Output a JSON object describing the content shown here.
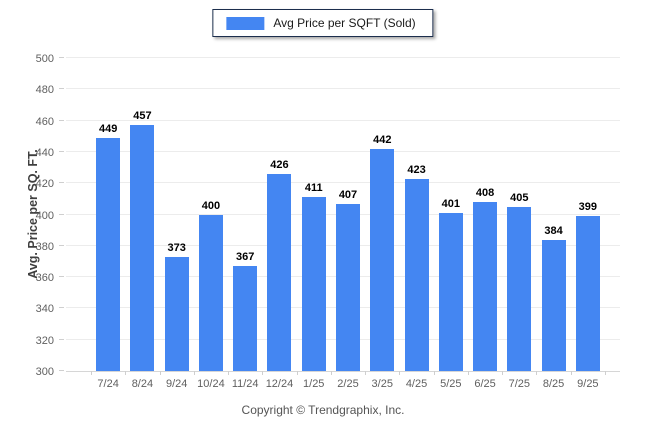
{
  "chart_data": {
    "type": "bar",
    "title": "",
    "legend": "Avg Price per SQFT (Sold)",
    "legend_position": "top-center",
    "xlabel": "",
    "ylabel": "Avg. Price per SQ. FT.",
    "categories": [
      "7/24",
      "8/24",
      "9/24",
      "10/24",
      "11/24",
      "12/24",
      "1/25",
      "2/25",
      "3/25",
      "4/25",
      "5/25",
      "6/25",
      "7/25",
      "8/25",
      "9/25"
    ],
    "values": [
      449,
      457,
      373,
      400,
      367,
      426,
      411,
      407,
      442,
      423,
      401,
      408,
      405,
      384,
      399
    ],
    "ylim": [
      300,
      500
    ],
    "yticks": [
      300,
      320,
      340,
      360,
      380,
      400,
      420,
      440,
      460,
      480,
      500
    ],
    "grid": "horizontal",
    "bar_color": "#4486F2"
  },
  "footer": {
    "copyright": "Copyright © Trendgraphix, Inc."
  },
  "colors": {
    "bar": "#4486F2",
    "legend_border": "#1c2e4d",
    "gridline": "#ececec",
    "axis_line": "#d6d6d6",
    "axis_text": "#5f5f5f",
    "value_text": "#000000",
    "footer_text": "#555555"
  }
}
